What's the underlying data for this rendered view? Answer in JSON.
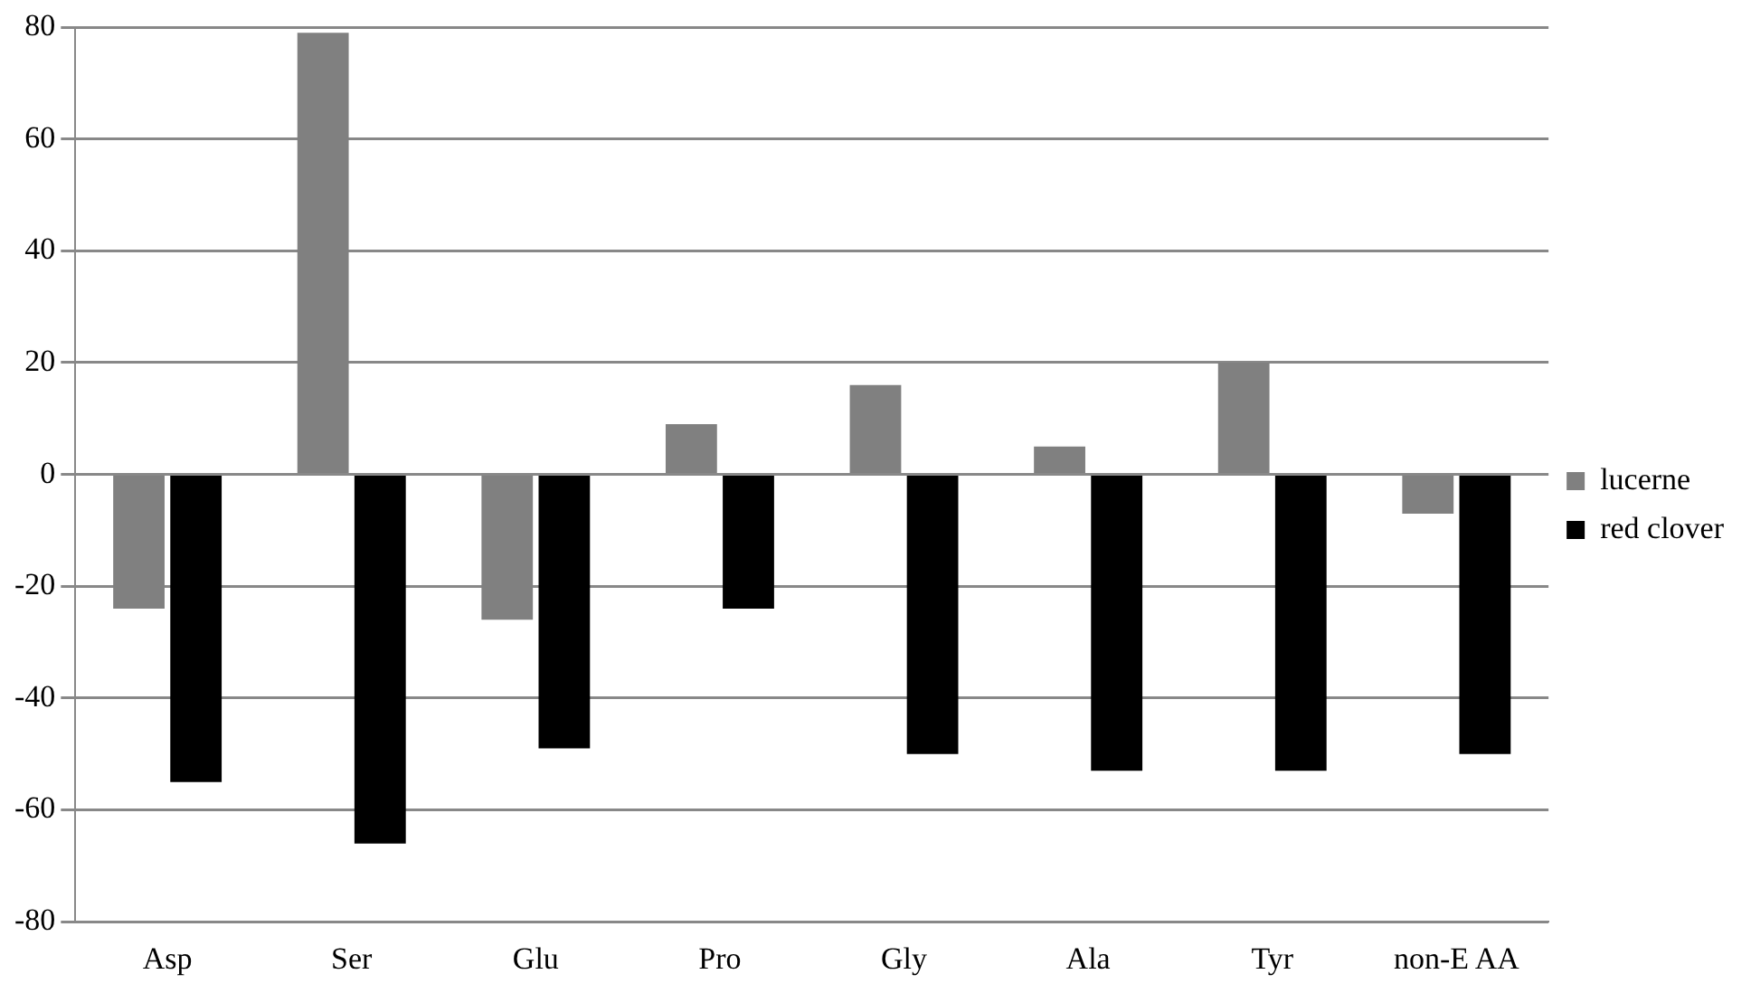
{
  "chart_data": {
    "type": "bar",
    "categories": [
      "Asp",
      "Ser",
      "Glu",
      "Pro",
      "Gly",
      "Ala",
      "Tyr",
      "non-E AA"
    ],
    "series": [
      {
        "name": "lucerne",
        "color": "#808080",
        "values": [
          -24,
          79,
          -26,
          9,
          16,
          5,
          20,
          -7
        ]
      },
      {
        "name": "red clover",
        "color": "#000000",
        "values": [
          -55,
          -66,
          -49,
          -24,
          -50,
          -53,
          -53,
          -50
        ]
      }
    ],
    "ylim": [
      -80,
      80
    ],
    "yticks": [
      -80,
      -60,
      -40,
      -20,
      0,
      20,
      40,
      60,
      80
    ],
    "grid": "y",
    "legend": "right"
  }
}
